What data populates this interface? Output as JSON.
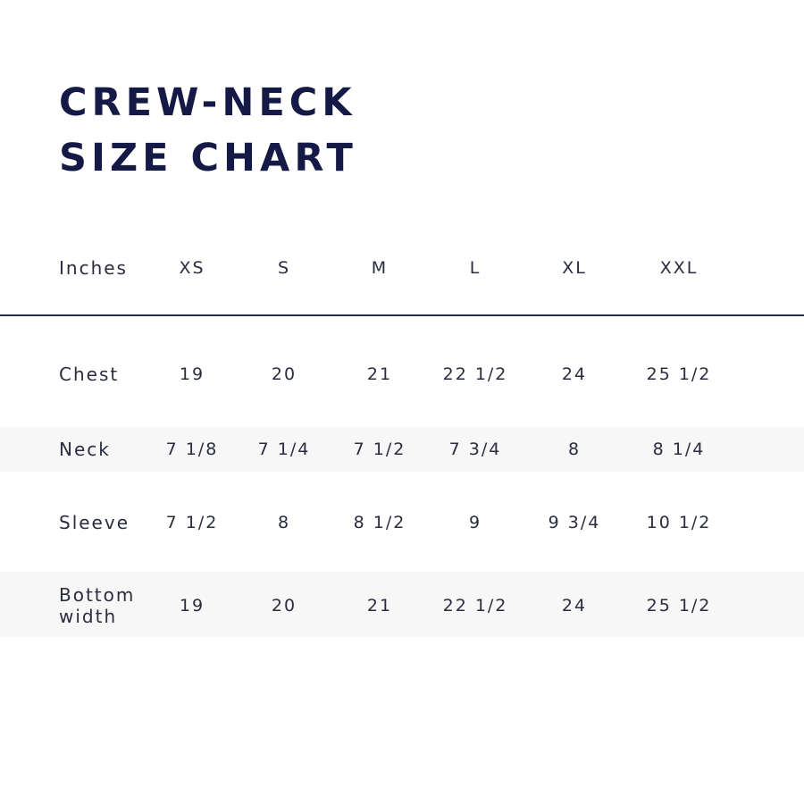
{
  "title": {
    "line1": "CREW-NECK",
    "line2": "SIZE CHART"
  },
  "table": {
    "unit_label": "Inches",
    "columns": [
      "XS",
      "S",
      "M",
      "L",
      "XL",
      "XXL"
    ],
    "rows": [
      {
        "label": "Chest",
        "values": [
          "19",
          "20",
          "21",
          "22 1/2",
          "24",
          "25 1/2"
        ]
      },
      {
        "label": "Neck",
        "values": [
          "7 1/8",
          "7 1/4",
          "7 1/2",
          "7 3/4",
          "8",
          "8 1/4"
        ]
      },
      {
        "label": "Sleeve",
        "values": [
          "7 1/2",
          "8",
          "8 1/2",
          "9",
          "9 3/4",
          "10 1/2"
        ]
      },
      {
        "label": "Bottom width",
        "values": [
          "19",
          "20",
          "21",
          "22 1/2",
          "24",
          "25 1/2"
        ]
      }
    ]
  },
  "colors": {
    "title": "#141a45",
    "text": "#2a2c40",
    "stripe": "#f7f7f8"
  }
}
